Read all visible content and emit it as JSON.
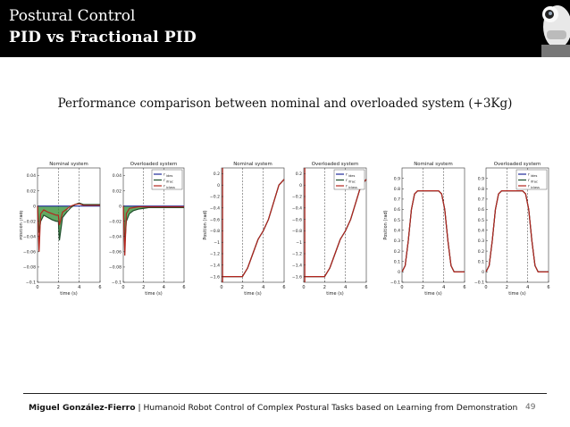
{
  "slide": {
    "title_line1": "Postural Control",
    "title_line2": "PID vs Fractional PID",
    "subtitle": "Performance comparison between nominal and overloaded system (+3Kg)",
    "footer_author": "Miguel González-Fierro",
    "footer_separator": "|",
    "footer_title": "Humanoid Robot Control of Complex Postural Tasks based on Learning from Demonstration",
    "page_number": "49"
  },
  "colors": {
    "header_bg": "#000000",
    "header_text": "#ffffff",
    "desired": "#1f2b9a",
    "pid": "#1e4d2b",
    "fpid": "#b3261e",
    "green_fill": "#2e8b2e"
  },
  "chart_data": [
    {
      "type": "line",
      "title": "Nominal system",
      "xlabel": "time (s)",
      "ylabel": "Position (rad)",
      "xlim": [
        0,
        6
      ],
      "ylim": [
        -0.1,
        0.05
      ],
      "xticks": [
        "0",
        "2",
        "4",
        "6"
      ],
      "yticks": [
        "0.04",
        "0.02",
        "0",
        "−0.02",
        "−0.04",
        "−0.06",
        "−0.08",
        "−0.1"
      ],
      "vlines": [
        2,
        4
      ],
      "series": [
        {
          "key": "des",
          "x": [
            0,
            6
          ],
          "y": [
            0,
            0
          ]
        },
        {
          "key": "pid",
          "x": [
            0,
            0.15,
            0.3,
            0.6,
            1.0,
            1.4,
            1.8,
            2.0,
            2.1,
            2.4,
            2.8,
            3.2,
            3.6,
            4.0,
            4.4,
            6.0
          ],
          "y": [
            0,
            -0.035,
            -0.02,
            -0.012,
            -0.015,
            -0.018,
            -0.02,
            -0.02,
            -0.045,
            -0.015,
            -0.008,
            -0.002,
            0.002,
            0.004,
            0.002,
            0.002
          ]
        },
        {
          "key": "fpid",
          "x": [
            0,
            0.15,
            0.3,
            0.6,
            1.0,
            1.4,
            1.8,
            2.0,
            2.1,
            2.4,
            2.8,
            3.2,
            3.6,
            4.0,
            4.4,
            6.0
          ],
          "y": [
            0,
            -0.06,
            -0.01,
            -0.005,
            -0.008,
            -0.01,
            -0.012,
            -0.012,
            -0.025,
            -0.008,
            -0.004,
            0,
            0.002,
            0.003,
            0.001,
            0.001
          ]
        }
      ]
    },
    {
      "type": "line",
      "title": "Overloaded system",
      "xlabel": "time (s)",
      "ylabel": "",
      "xlim": [
        0,
        6
      ],
      "ylim": [
        -0.1,
        0.05
      ],
      "xticks": [
        "0",
        "2",
        "4",
        "6"
      ],
      "yticks": [
        "0.04",
        "0.02",
        "0",
        "−0.02",
        "−0.04",
        "−0.06",
        "−0.08",
        "−0.1"
      ],
      "vlines": [
        2,
        4
      ],
      "legend": [
        "r",
        "r",
        "r"
      ],
      "legend_subs": [
        "ides",
        "ifrac",
        "iclass"
      ],
      "series": [
        {
          "key": "des",
          "x": [
            0,
            6
          ],
          "y": [
            0,
            0
          ]
        },
        {
          "key": "pid",
          "x": [
            0,
            0.15,
            0.3,
            0.6,
            1.0,
            1.5,
            2.0,
            2.5,
            3.0,
            6.0
          ],
          "y": [
            0,
            -0.05,
            -0.02,
            -0.01,
            -0.006,
            -0.004,
            -0.003,
            -0.002,
            -0.002,
            -0.002
          ]
        },
        {
          "key": "fpid",
          "x": [
            0,
            0.15,
            0.3,
            0.6,
            1.0,
            1.5,
            2.0,
            2.5,
            3.0,
            6.0
          ],
          "y": [
            0,
            -0.065,
            -0.01,
            -0.003,
            -0.002,
            -0.001,
            -0.001,
            -0.001,
            -0.001,
            -0.001
          ]
        }
      ]
    },
    {
      "type": "line",
      "title": "Nominal system",
      "xlabel": "time (s)",
      "ylabel": "Position (rad)",
      "xlim": [
        0,
        6
      ],
      "ylim": [
        -1.7,
        0.3
      ],
      "xticks": [
        "0",
        "2",
        "4",
        "6"
      ],
      "yticks": [
        "0.2",
        "0",
        "−0.2",
        "−0.4",
        "−0.6",
        "−0.8",
        "−1",
        "−1.2",
        "−1.4",
        "−1.6"
      ],
      "vlines": [
        2,
        4
      ],
      "series": [
        {
          "key": "des",
          "x": [
            0,
            2,
            2.5,
            3,
            3.5,
            4,
            4.5,
            5,
            5.5,
            6
          ],
          "y": [
            -1.6,
            -1.6,
            -1.45,
            -1.2,
            -0.95,
            -0.8,
            -0.6,
            -0.3,
            0,
            0.1
          ]
        },
        {
          "key": "pid",
          "x": [
            0,
            2,
            2.5,
            3,
            3.5,
            4,
            4.5,
            5,
            5.5,
            6
          ],
          "y": [
            -1.6,
            -1.6,
            -1.45,
            -1.2,
            -0.95,
            -0.8,
            -0.6,
            -0.3,
            0,
            0.1
          ]
        },
        {
          "key": "fpid",
          "x": [
            0,
            2,
            2.5,
            3,
            3.5,
            4,
            4.5,
            5,
            5.5,
            6
          ],
          "y": [
            -1.6,
            -1.6,
            -1.45,
            -1.2,
            -0.95,
            -0.8,
            -0.6,
            -0.3,
            0,
            0.1
          ]
        }
      ]
    },
    {
      "type": "line",
      "title": "Overloaded system",
      "xlabel": "time (s)",
      "ylabel": "",
      "xlim": [
        0,
        6
      ],
      "ylim": [
        -1.7,
        0.3
      ],
      "xticks": [
        "0",
        "2",
        "4",
        "6"
      ],
      "yticks": [
        "0.2",
        "0",
        "−0.2",
        "−0.4",
        "−0.6",
        "−0.8",
        "−1",
        "−1.2",
        "−1.4",
        "−1.6"
      ],
      "vlines": [
        2,
        4
      ],
      "legend": [
        "r",
        "r",
        "r"
      ],
      "legend_subs": [
        "ides",
        "ifrac",
        "iclass"
      ],
      "series": [
        {
          "key": "des",
          "x": [
            0,
            2,
            2.5,
            3,
            3.5,
            4,
            4.5,
            5,
            5.5,
            6
          ],
          "y": [
            -1.6,
            -1.6,
            -1.45,
            -1.2,
            -0.95,
            -0.8,
            -0.6,
            -0.3,
            0,
            0.1
          ]
        },
        {
          "key": "pid",
          "x": [
            0,
            2,
            2.5,
            3,
            3.5,
            4,
            4.5,
            5,
            5.5,
            6
          ],
          "y": [
            -1.6,
            -1.6,
            -1.45,
            -1.2,
            -0.95,
            -0.8,
            -0.6,
            -0.3,
            0,
            0.1
          ]
        },
        {
          "key": "fpid",
          "x": [
            0,
            2,
            2.5,
            3,
            3.5,
            4,
            4.5,
            5,
            5.5,
            6
          ],
          "y": [
            -1.6,
            -1.6,
            -1.45,
            -1.2,
            -0.95,
            -0.8,
            -0.6,
            -0.3,
            0,
            0.1
          ]
        }
      ]
    },
    {
      "type": "line",
      "title": "Nominal system",
      "xlabel": "time (s)",
      "ylabel": "Position (rad)",
      "xlim": [
        0,
        6
      ],
      "ylim": [
        -0.1,
        1.0
      ],
      "xticks": [
        "0",
        "2",
        "4",
        "6"
      ],
      "yticks": [
        "0.9",
        "0.8",
        "0.7",
        "0.6",
        "0.5",
        "0.4",
        "0.3",
        "0.2",
        "0.1",
        "0",
        "−0.1"
      ],
      "vlines": [
        2,
        4
      ],
      "series": [
        {
          "key": "des",
          "x": [
            0,
            0.3,
            0.6,
            0.9,
            1.2,
            1.5,
            3.5,
            3.8,
            4.1,
            4.4,
            4.7,
            5.0,
            6.0
          ],
          "y": [
            0,
            0.06,
            0.3,
            0.6,
            0.75,
            0.78,
            0.78,
            0.75,
            0.6,
            0.3,
            0.06,
            0,
            0
          ]
        },
        {
          "key": "pid",
          "x": [
            0,
            0.3,
            0.6,
            0.9,
            1.2,
            1.5,
            3.5,
            3.8,
            4.1,
            4.4,
            4.7,
            5.0,
            6.0
          ],
          "y": [
            0,
            0.06,
            0.3,
            0.6,
            0.75,
            0.78,
            0.78,
            0.75,
            0.6,
            0.3,
            0.06,
            0,
            0
          ]
        },
        {
          "key": "fpid",
          "x": [
            0,
            0.3,
            0.6,
            0.9,
            1.2,
            1.5,
            3.5,
            3.8,
            4.1,
            4.4,
            4.7,
            5.0,
            6.0
          ],
          "y": [
            0,
            0.06,
            0.3,
            0.6,
            0.75,
            0.78,
            0.78,
            0.75,
            0.6,
            0.3,
            0.06,
            0,
            0
          ]
        }
      ]
    },
    {
      "type": "line",
      "title": "Overloaded system",
      "xlabel": "time (s)",
      "ylabel": "",
      "xlim": [
        0,
        6
      ],
      "ylim": [
        -0.1,
        1.0
      ],
      "xticks": [
        "0",
        "2",
        "4",
        "6"
      ],
      "yticks": [
        "0.9",
        "0.8",
        "0.7",
        "0.6",
        "0.5",
        "0.4",
        "0.3",
        "0.2",
        "0.1",
        "0",
        "−0.1"
      ],
      "vlines": [
        2,
        4
      ],
      "legend": [
        "r",
        "r",
        "r"
      ],
      "legend_subs": [
        "ides",
        "ifrac",
        "iclass"
      ],
      "series": [
        {
          "key": "des",
          "x": [
            0,
            0.3,
            0.6,
            0.9,
            1.2,
            1.5,
            3.5,
            3.8,
            4.1,
            4.4,
            4.7,
            5.0,
            6.0
          ],
          "y": [
            0,
            0.06,
            0.3,
            0.6,
            0.75,
            0.78,
            0.78,
            0.75,
            0.6,
            0.3,
            0.06,
            0,
            0
          ]
        },
        {
          "key": "pid",
          "x": [
            0,
            0.3,
            0.6,
            0.9,
            1.2,
            1.5,
            3.5,
            3.8,
            4.1,
            4.4,
            4.7,
            5.0,
            6.0
          ],
          "y": [
            0,
            0.06,
            0.3,
            0.6,
            0.75,
            0.78,
            0.78,
            0.75,
            0.6,
            0.3,
            0.06,
            0,
            0
          ]
        },
        {
          "key": "fpid",
          "x": [
            0,
            0.3,
            0.6,
            0.9,
            1.2,
            1.5,
            3.5,
            3.8,
            4.1,
            4.4,
            4.7,
            5.0,
            6.0
          ],
          "y": [
            0,
            0.06,
            0.3,
            0.6,
            0.75,
            0.78,
            0.78,
            0.75,
            0.6,
            0.3,
            0.06,
            0,
            0
          ]
        }
      ]
    }
  ]
}
